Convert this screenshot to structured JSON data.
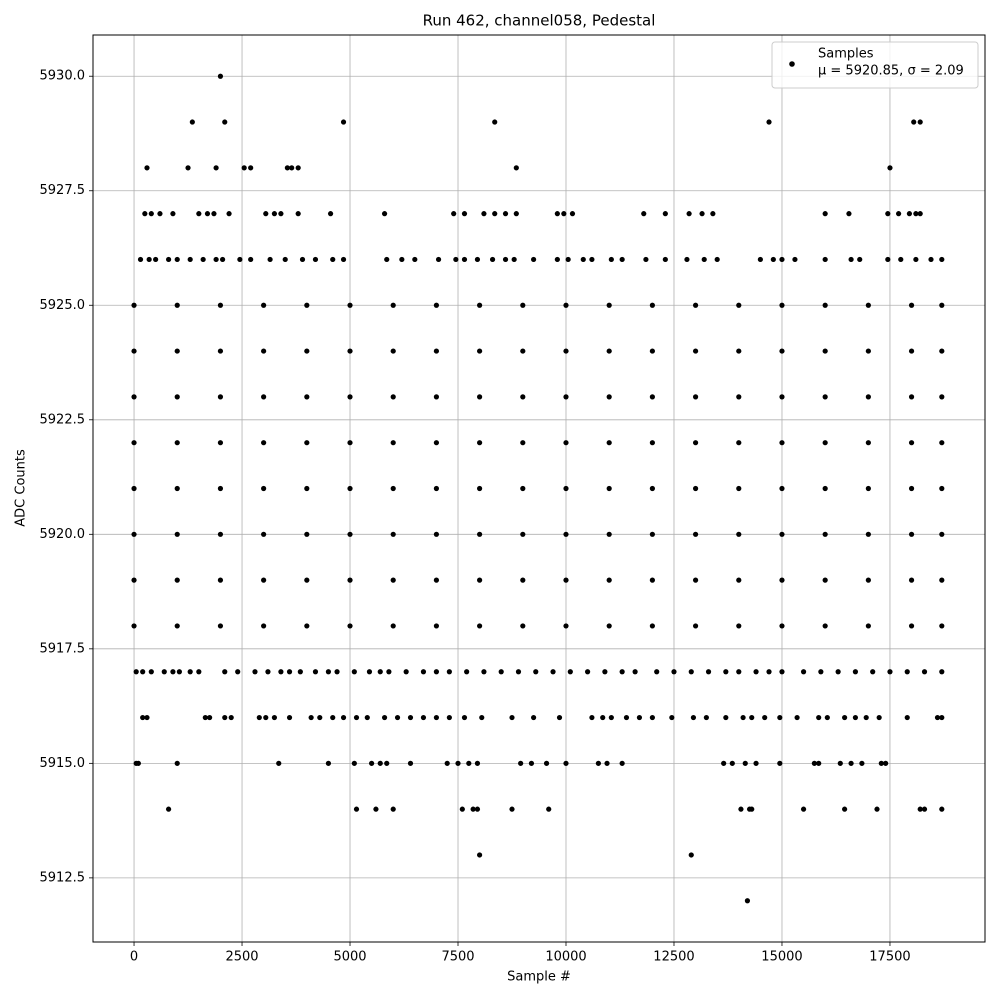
{
  "chart_data": {
    "type": "scatter",
    "title": "Run 462, channel058, Pedestal",
    "x_label": "Sample #",
    "y_label": "ADC Counts",
    "legend_position": "upper right",
    "grid": true,
    "annotation": "μ = 5920.85, σ = 2.09",
    "xlim": [
      -950,
      19700
    ],
    "ylim": [
      5911.1,
      5930.9
    ],
    "xticks": [
      0,
      2500,
      5000,
      7500,
      10000,
      12500,
      15000,
      17500
    ],
    "yticks": [
      {
        "value": 5912.5,
        "label": "5912.5"
      },
      {
        "value": 5915,
        "label": "5915.0"
      },
      {
        "value": 5917.5,
        "label": "5917.5"
      },
      {
        "value": 5920,
        "label": "5920.0"
      },
      {
        "value": 5922.5,
        "label": "5922.5"
      },
      {
        "value": 5925,
        "label": "5925.0"
      },
      {
        "value": 5927.5,
        "label": "5927.5"
      },
      {
        "value": 5930,
        "label": "5930.0"
      }
    ],
    "series": [
      {
        "name": "Samples",
        "color": "#000000",
        "x": [
          0,
          1000,
          2000,
          3000,
          4000,
          5000,
          6000,
          7000,
          8000,
          9000,
          10000,
          11000,
          12000,
          13000,
          14000,
          15000,
          16000,
          17000,
          18000,
          18700,
          0,
          1000,
          2000,
          3000,
          4000,
          5000,
          6000,
          7000,
          8000,
          9000,
          10000,
          11000,
          12000,
          13000,
          14000,
          15000,
          16000,
          17000,
          18000,
          18700,
          0,
          1000,
          2000,
          3000,
          4000,
          5000,
          6000,
          7000,
          8000,
          9000,
          10000,
          11000,
          12000,
          13000,
          14000,
          15000,
          16000,
          17000,
          18000,
          18700,
          0,
          1000,
          2000,
          3000,
          4000,
          5000,
          6000,
          7000,
          8000,
          9000,
          10000,
          11000,
          12000,
          13000,
          14000,
          15000,
          16000,
          17000,
          18000,
          18700,
          0,
          1000,
          2000,
          3000,
          4000,
          5000,
          6000,
          7000,
          8000,
          9000,
          10000,
          11000,
          12000,
          13000,
          14000,
          15000,
          16000,
          17000,
          18000,
          18700,
          0,
          1000,
          2000,
          3000,
          4000,
          5000,
          6000,
          7000,
          8000,
          9000,
          10000,
          11000,
          12000,
          13000,
          14000,
          15000,
          16000,
          17000,
          18000,
          18700,
          0,
          1000,
          2000,
          3000,
          4000,
          5000,
          6000,
          7000,
          8000,
          9000,
          10000,
          11000,
          12000,
          13000,
          14000,
          15000,
          16000,
          17000,
          18000,
          18700,
          0,
          1000,
          2000,
          3000,
          4000,
          5000,
          6000,
          7000,
          8000,
          9000,
          10000,
          11000,
          12000,
          13000,
          14000,
          15000,
          16000,
          17000,
          18000,
          18700,
          2000,
          1350,
          2100,
          4850,
          8350,
          14700,
          18050,
          18200,
          300,
          1250,
          1900,
          2550,
          2700,
          3550,
          3650,
          3800,
          8850,
          17500,
          250,
          400,
          600,
          900,
          1500,
          1700,
          1850,
          2200,
          3050,
          3250,
          3400,
          3800,
          4550,
          5800,
          7400,
          7650,
          8100,
          8350,
          8600,
          8850,
          9800,
          9950,
          10150,
          11800,
          12300,
          12850,
          13150,
          13400,
          16000,
          16550,
          17450,
          17700,
          17950,
          18100,
          18200,
          150,
          350,
          500,
          800,
          1000,
          1300,
          1600,
          1900,
          2050,
          2450,
          2700,
          3150,
          3500,
          3900,
          4200,
          4600,
          4850,
          5850,
          6200,
          6500,
          7050,
          7450,
          7650,
          7950,
          8300,
          8600,
          8800,
          9250,
          9800,
          10050,
          10400,
          10600,
          11050,
          11300,
          11850,
          12300,
          12800,
          13200,
          13500,
          14500,
          14800,
          15000,
          15300,
          16000,
          16600,
          16800,
          17450,
          17750,
          18100,
          18450,
          18700,
          50,
          200,
          400,
          700,
          900,
          1050,
          1300,
          1500,
          2100,
          2400,
          2800,
          3100,
          3400,
          3600,
          3850,
          4200,
          4500,
          4700,
          5100,
          5450,
          5700,
          5900,
          6300,
          6700,
          7000,
          7300,
          7700,
          8100,
          8500,
          8900,
          9300,
          9700,
          10100,
          10500,
          10900,
          11300,
          11600,
          12100,
          12500,
          12900,
          13300,
          13700,
          14000,
          14400,
          14700,
          15000,
          15500,
          15900,
          16300,
          16700,
          17100,
          17500,
          17900,
          18300,
          18700,
          200,
          300,
          1650,
          1750,
          2100,
          2250,
          2900,
          3050,
          3250,
          3600,
          4100,
          4300,
          4600,
          4850,
          5150,
          5400,
          5800,
          6100,
          6400,
          6700,
          7000,
          7300,
          7650,
          8050,
          8750,
          9250,
          9850,
          10600,
          10850,
          11050,
          11400,
          11700,
          12000,
          12450,
          12950,
          13250,
          13700,
          14100,
          14300,
          14600,
          14950,
          15350,
          15850,
          16050,
          16450,
          16700,
          16950,
          17250,
          17900,
          18600,
          18700,
          50,
          100,
          1000,
          3350,
          4500,
          5100,
          5500,
          5700,
          5850,
          6400,
          7250,
          7500,
          7750,
          7950,
          8950,
          9200,
          9550,
          10000,
          10750,
          10950,
          11300,
          13650,
          13850,
          14150,
          14400,
          14950,
          15750,
          15850,
          16350,
          16600,
          16850,
          17300,
          17400,
          800,
          5150,
          5600,
          6000,
          7600,
          7850,
          7950,
          8750,
          9600,
          14050,
          14250,
          14300,
          15500,
          16450,
          17200,
          18200,
          18300,
          18700,
          8000,
          12900,
          14200
        ],
        "values": [
          5918,
          5918,
          5918,
          5918,
          5918,
          5918,
          5918,
          5918,
          5918,
          5918,
          5918,
          5918,
          5918,
          5918,
          5918,
          5918,
          5918,
          5918,
          5918,
          5918,
          5919,
          5919,
          5919,
          5919,
          5919,
          5919,
          5919,
          5919,
          5919,
          5919,
          5919,
          5919,
          5919,
          5919,
          5919,
          5919,
          5919,
          5919,
          5919,
          5919,
          5920,
          5920,
          5920,
          5920,
          5920,
          5920,
          5920,
          5920,
          5920,
          5920,
          5920,
          5920,
          5920,
          5920,
          5920,
          5920,
          5920,
          5920,
          5920,
          5920,
          5921,
          5921,
          5921,
          5921,
          5921,
          5921,
          5921,
          5921,
          5921,
          5921,
          5921,
          5921,
          5921,
          5921,
          5921,
          5921,
          5921,
          5921,
          5921,
          5921,
          5922,
          5922,
          5922,
          5922,
          5922,
          5922,
          5922,
          5922,
          5922,
          5922,
          5922,
          5922,
          5922,
          5922,
          5922,
          5922,
          5922,
          5922,
          5922,
          5922,
          5923,
          5923,
          5923,
          5923,
          5923,
          5923,
          5923,
          5923,
          5923,
          5923,
          5923,
          5923,
          5923,
          5923,
          5923,
          5923,
          5923,
          5923,
          5923,
          5923,
          5924,
          5924,
          5924,
          5924,
          5924,
          5924,
          5924,
          5924,
          5924,
          5924,
          5924,
          5924,
          5924,
          5924,
          5924,
          5924,
          5924,
          5924,
          5924,
          5924,
          5925,
          5925,
          5925,
          5925,
          5925,
          5925,
          5925,
          5925,
          5925,
          5925,
          5925,
          5925,
          5925,
          5925,
          5925,
          5925,
          5925,
          5925,
          5925,
          5925,
          5930,
          5929,
          5929,
          5929,
          5929,
          5929,
          5929,
          5929,
          5928,
          5928,
          5928,
          5928,
          5928,
          5928,
          5928,
          5928,
          5928,
          5928,
          5927,
          5927,
          5927,
          5927,
          5927,
          5927,
          5927,
          5927,
          5927,
          5927,
          5927,
          5927,
          5927,
          5927,
          5927,
          5927,
          5927,
          5927,
          5927,
          5927,
          5927,
          5927,
          5927,
          5927,
          5927,
          5927,
          5927,
          5927,
          5927,
          5927,
          5927,
          5927,
          5927,
          5927,
          5927,
          5926,
          5926,
          5926,
          5926,
          5926,
          5926,
          5926,
          5926,
          5926,
          5926,
          5926,
          5926,
          5926,
          5926,
          5926,
          5926,
          5926,
          5926,
          5926,
          5926,
          5926,
          5926,
          5926,
          5926,
          5926,
          5926,
          5926,
          5926,
          5926,
          5926,
          5926,
          5926,
          5926,
          5926,
          5926,
          5926,
          5926,
          5926,
          5926,
          5926,
          5926,
          5926,
          5926,
          5926,
          5926,
          5926,
          5926,
          5926,
          5926,
          5926,
          5926,
          5917,
          5917,
          5917,
          5917,
          5917,
          5917,
          5917,
          5917,
          5917,
          5917,
          5917,
          5917,
          5917,
          5917,
          5917,
          5917,
          5917,
          5917,
          5917,
          5917,
          5917,
          5917,
          5917,
          5917,
          5917,
          5917,
          5917,
          5917,
          5917,
          5917,
          5917,
          5917,
          5917,
          5917,
          5917,
          5917,
          5917,
          5917,
          5917,
          5917,
          5917,
          5917,
          5917,
          5917,
          5917,
          5917,
          5917,
          5917,
          5917,
          5917,
          5917,
          5917,
          5917,
          5917,
          5917,
          5916,
          5916,
          5916,
          5916,
          5916,
          5916,
          5916,
          5916,
          5916,
          5916,
          5916,
          5916,
          5916,
          5916,
          5916,
          5916,
          5916,
          5916,
          5916,
          5916,
          5916,
          5916,
          5916,
          5916,
          5916,
          5916,
          5916,
          5916,
          5916,
          5916,
          5916,
          5916,
          5916,
          5916,
          5916,
          5916,
          5916,
          5916,
          5916,
          5916,
          5916,
          5916,
          5916,
          5916,
          5916,
          5916,
          5916,
          5916,
          5916,
          5916,
          5916,
          5915,
          5915,
          5915,
          5915,
          5915,
          5915,
          5915,
          5915,
          5915,
          5915,
          5915,
          5915,
          5915,
          5915,
          5915,
          5915,
          5915,
          5915,
          5915,
          5915,
          5915,
          5915,
          5915,
          5915,
          5915,
          5915,
          5915,
          5915,
          5915,
          5915,
          5915,
          5915,
          5915,
          5914,
          5914,
          5914,
          5914,
          5914,
          5914,
          5914,
          5914,
          5914,
          5914,
          5914,
          5914,
          5914,
          5914,
          5914,
          5914,
          5914,
          5914,
          5913,
          5913,
          5912
        ]
      }
    ]
  }
}
